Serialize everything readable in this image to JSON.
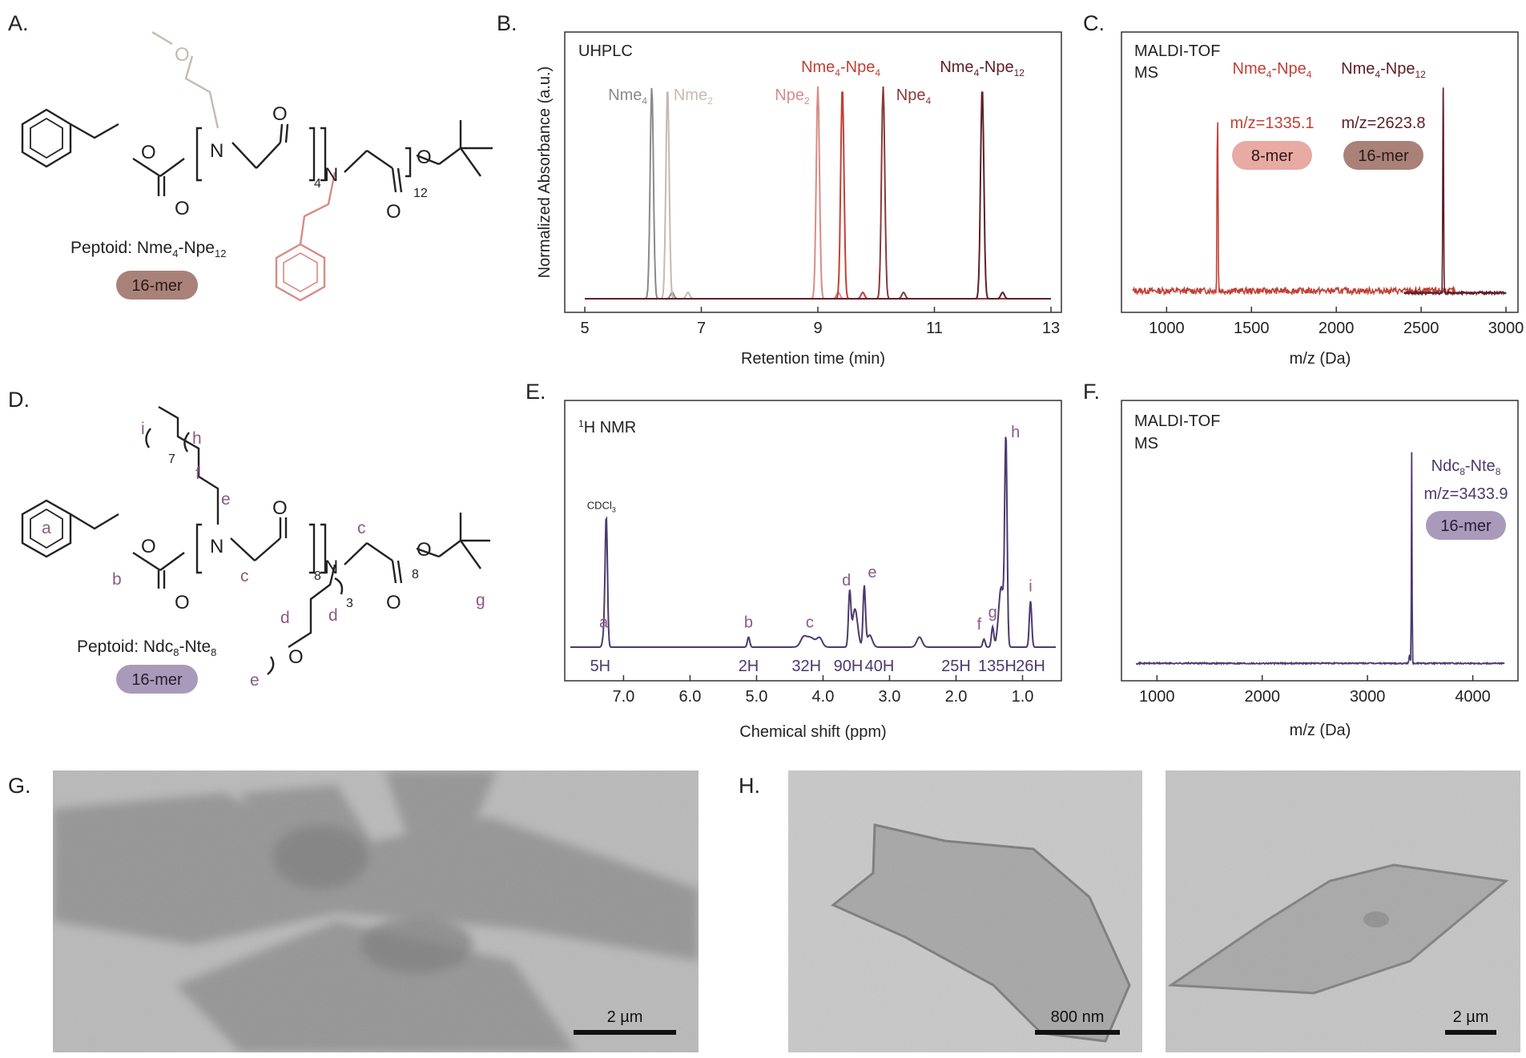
{
  "panel_labels": [
    "A.",
    "B.",
    "C.",
    "D.",
    "E.",
    "F.",
    "G.",
    "H."
  ],
  "colors": {
    "gray": "#8a8a8a",
    "beige": "#c7b9b0",
    "pink": "#d88c84",
    "red": "#c23f35",
    "maroon": "#5e2028",
    "purple": "#4b3a6e",
    "badge_brown": "#a98178",
    "badge_pink": "#e8aaa2",
    "badge_purple": "#a99abb",
    "label_purple": "#8a5a8a"
  },
  "structure_a": {
    "caption": "Peptoid: Nme",
    "caption_sub1": "4",
    "caption_mid": "-Npe",
    "caption_sub2": "12",
    "badge": "16-mer",
    "atoms": {
      "O": "O",
      "N": "N"
    },
    "sub_4": "4",
    "sub_12": "12"
  },
  "structure_d": {
    "caption": "Peptoid: Ndc",
    "caption_sub1": "8",
    "caption_mid": "-Nte",
    "caption_sub2": "8",
    "badge": "16-mer",
    "labels": [
      "a",
      "b",
      "c",
      "c",
      "d",
      "d",
      "e",
      "e",
      "f",
      "g",
      "h",
      "i"
    ],
    "sub_7": "7",
    "sub_8a": "8",
    "sub_8b": "8",
    "sub_3": "3"
  },
  "chart_data": [
    {
      "type": "line",
      "panel": "B",
      "title": "UHPLC",
      "xlabel": "Retention time (min)",
      "ylabel": "Normalized Absorbance (a.u.)",
      "xlim": [
        5,
        13
      ],
      "x_ticks": [
        5,
        7,
        9,
        11,
        13
      ],
      "series": [
        {
          "name": "Nme4",
          "label": "Nme",
          "sub": "4",
          "color": "#8a8a8a",
          "peak_x": 6.15,
          "height": 1.0
        },
        {
          "name": "Nme2",
          "label": "Nme",
          "sub": "2",
          "color": "#c7b9b0",
          "peak_x": 6.42,
          "height": 1.0
        },
        {
          "name": "Npe2",
          "label": "Npe",
          "sub": "2",
          "color": "#d88c84",
          "peak_x": 9.0,
          "height": 1.0
        },
        {
          "name": "Nme4-Npe4",
          "label": "Nme",
          "sub": "4",
          "label2": "-Npe",
          "sub2": "4",
          "color": "#c23f35",
          "peak_x": 9.42,
          "height": 1.0
        },
        {
          "name": "Npe4",
          "label": "Npe",
          "sub": "4",
          "color": "#8a3a3a",
          "peak_x": 10.12,
          "height": 1.0
        },
        {
          "name": "Nme4-Npe12",
          "label": "Nme",
          "sub": "4",
          "label2": "-Npe",
          "sub2": "12",
          "color": "#5e2028",
          "peak_x": 11.82,
          "height": 1.0
        }
      ]
    },
    {
      "type": "line",
      "panel": "C",
      "title": "MALDI-TOF",
      "title2": "MS",
      "xlabel": "m/z (Da)",
      "xlim": [
        800,
        3000
      ],
      "x_ticks": [
        1000,
        1500,
        2000,
        2500,
        3000
      ],
      "series": [
        {
          "name": "Nme4-Npe4",
          "label": "Nme",
          "sub": "4",
          "label2": "-Npe",
          "sub2": "4",
          "mz_text": "m/z=1335.1",
          "badge": "8-mer",
          "color": "#c23f35",
          "peak_x": 1300
        },
        {
          "name": "Nme4-Npe12",
          "label": "Nme",
          "sub": "4",
          "label2": "-Npe",
          "sub2": "12",
          "mz_text": "m/z=2623.8",
          "badge": "16-mer",
          "color": "#5e2028",
          "peak_x": 2630
        }
      ]
    },
    {
      "type": "line",
      "panel": "E",
      "title_sup": "1",
      "title": "H NMR",
      "xlabel": "Chemical shift (ppm)",
      "xlim": [
        7.8,
        0.5
      ],
      "x_ticks": [
        7.0,
        6.0,
        5.0,
        4.0,
        3.0,
        2.0,
        1.0
      ],
      "x_tick_labels": [
        "7.0",
        "6.0",
        "5.0",
        "4.0",
        "3.0",
        "2.0",
        "1.0"
      ],
      "solvent": "CDCl",
      "solvent_sub": "3",
      "peaks": [
        {
          "label": "a",
          "x": 7.3,
          "height": 0.05
        },
        {
          "label": "CDCl3",
          "x": 7.26,
          "height": 0.65
        },
        {
          "label": "b",
          "x": 5.12,
          "height": 0.05
        },
        {
          "label": "c",
          "x": 4.2,
          "height": 0.05
        },
        {
          "label": "d",
          "x": 3.6,
          "height": 0.26
        },
        {
          "label": "e",
          "x": 3.38,
          "height": 0.3
        },
        {
          "label": "f",
          "x": 1.58,
          "height": 0.04
        },
        {
          "label": "g",
          "x": 1.45,
          "height": 0.1
        },
        {
          "label": "h",
          "x": 1.25,
          "height": 1.0
        },
        {
          "label": "i",
          "x": 0.88,
          "height": 0.23
        }
      ],
      "integrals": [
        "5H",
        "2H",
        "32H",
        "90H",
        "40H",
        "25H",
        "135H",
        "26H"
      ]
    },
    {
      "type": "line",
      "panel": "F",
      "title": "MALDI-TOF",
      "title2": "MS",
      "xlabel": "m/z (Da)",
      "xlim": [
        800,
        4300
      ],
      "x_ticks": [
        1000,
        2000,
        3000,
        4000
      ],
      "series": [
        {
          "name": "Ndc8-Nte8",
          "label": "Ndc",
          "sub": "8",
          "label2": "-Nte",
          "sub2": "8",
          "mz_text": "m/z=3433.9",
          "badge": "16-mer",
          "color": "#4b3a6e",
          "peak_x": 3420
        }
      ]
    }
  ],
  "micrographs": {
    "g_scale": "2 µm",
    "h1_scale": "800 nm",
    "h2_scale": "2 µm"
  }
}
